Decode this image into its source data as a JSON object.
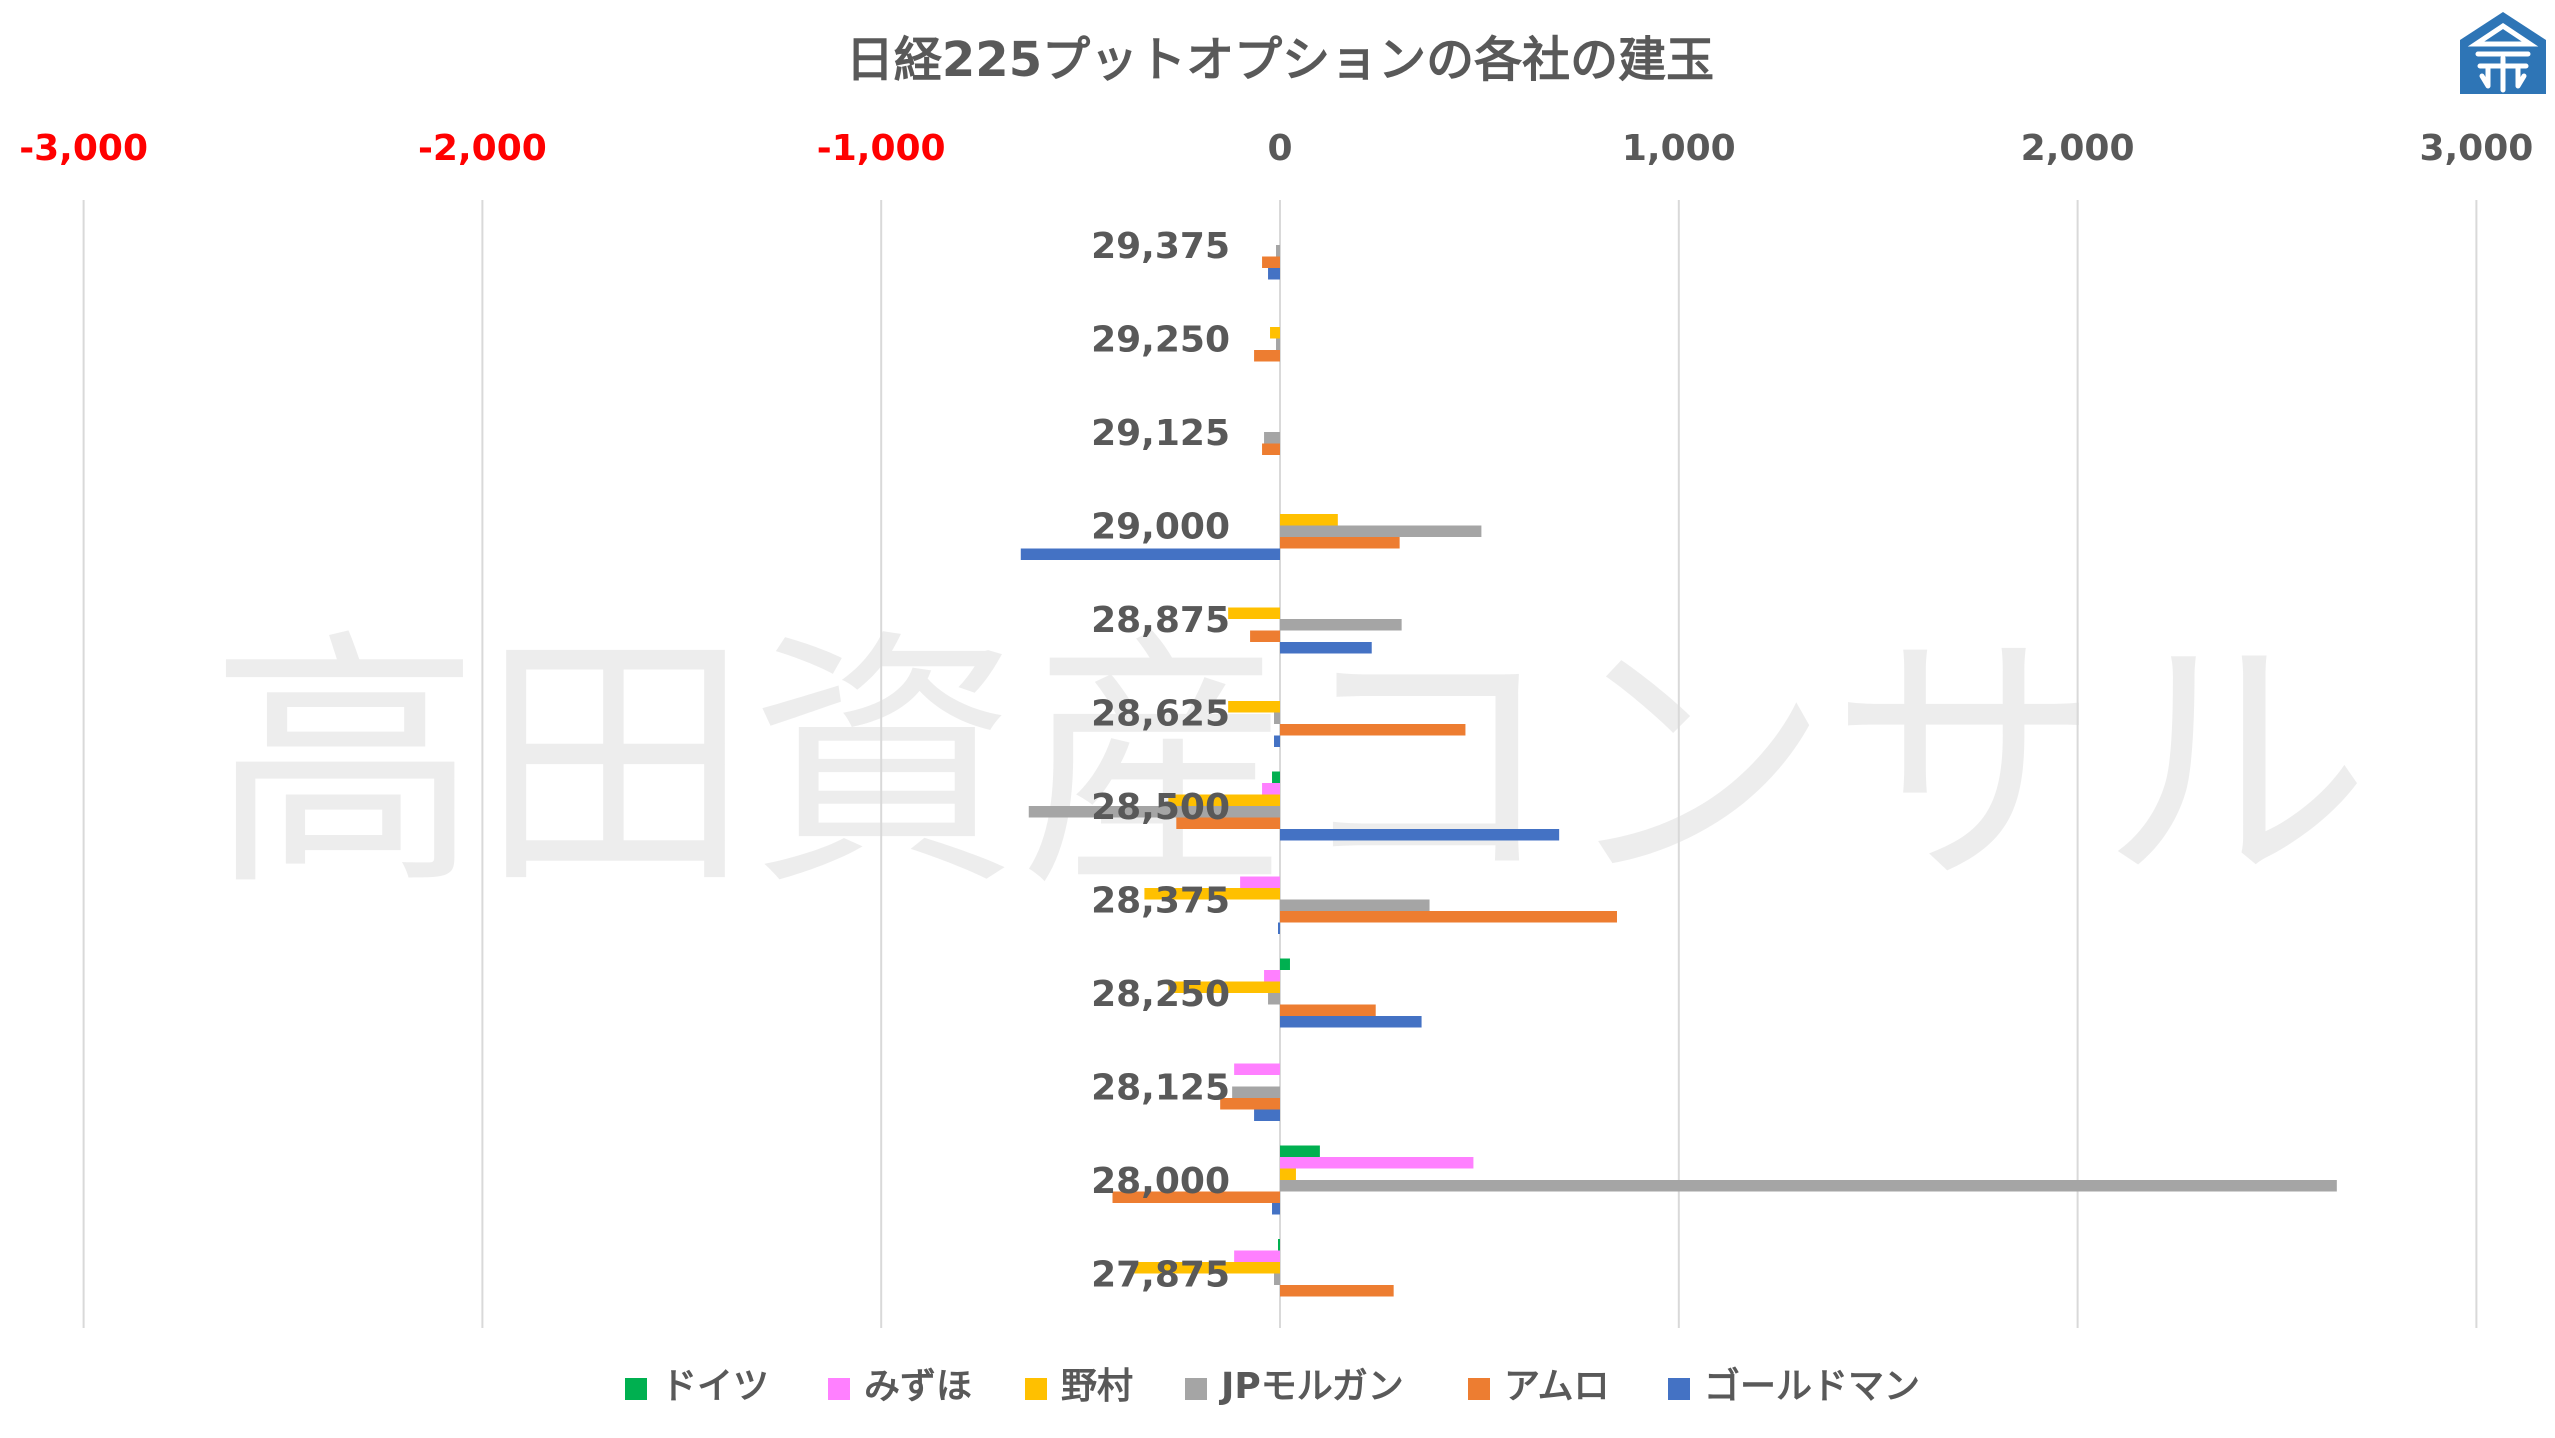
{
  "chart_data": {
    "type": "bar",
    "orientation": "horizontal",
    "title": "日経225プットオプションの各社の建玉",
    "watermark": "高田資産コンサル",
    "x_axis_position": "top",
    "xlim": [
      -3000,
      3000
    ],
    "xticks": [
      -3000,
      -2000,
      -1000,
      0,
      1000,
      2000,
      3000
    ],
    "xtick_labels": [
      "-3,000",
      "-2,000",
      "-1,000",
      "0",
      "1,000",
      "2,000",
      "3,000"
    ],
    "negative_tick_color": "#ff0000",
    "positive_tick_color": "#595959",
    "grid": "vertical",
    "legend_position": "bottom",
    "categories": [
      "29,375",
      "29,250",
      "29,125",
      "29,000",
      "28,875",
      "28,625",
      "28,500",
      "28,375",
      "28,250",
      "28,125",
      "28,000",
      "27,875"
    ],
    "series": [
      {
        "name": "ドイツ",
        "color": "#00b050",
        "values": [
          0,
          0,
          0,
          0,
          0,
          0,
          -20,
          0,
          25,
          0,
          100,
          -5
        ]
      },
      {
        "name": "みずほ",
        "color": "#ff80ff",
        "values": [
          0,
          0,
          0,
          0,
          0,
          0,
          -45,
          -100,
          -40,
          -115,
          485,
          -115
        ]
      },
      {
        "name": "野村",
        "color": "#ffc000",
        "values": [
          0,
          -25,
          0,
          145,
          -130,
          -130,
          -280,
          -340,
          -280,
          0,
          40,
          -370
        ]
      },
      {
        "name": "JPモルガン",
        "color": "#a5a5a5",
        "values": [
          -10,
          -10,
          -40,
          505,
          305,
          -15,
          -630,
          375,
          -30,
          -120,
          2650,
          -15
        ]
      },
      {
        "name": "アムロ",
        "color": "#ed7d31",
        "values": [
          -45,
          -65,
          -45,
          300,
          -75,
          465,
          -260,
          845,
          240,
          -150,
          -420,
          285
        ]
      },
      {
        "name": "ゴールドマン",
        "color": "#4472c4",
        "values": [
          -30,
          0,
          0,
          -650,
          230,
          -15,
          700,
          -5,
          355,
          -65,
          -20,
          0
        ]
      }
    ]
  },
  "logo": {
    "name": "takata-logo",
    "color": "#2e75b6"
  }
}
